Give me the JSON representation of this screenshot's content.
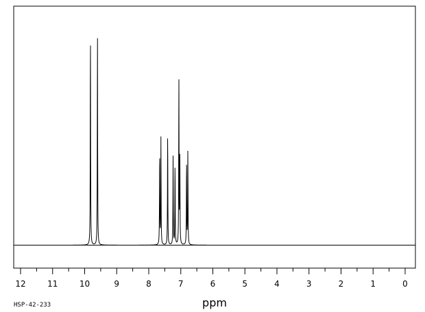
{
  "chart_data": {
    "type": "line",
    "title": "",
    "xlabel": "ppm",
    "ylabel": "",
    "xlim": [
      12.2,
      -0.3
    ],
    "x_reversed": true,
    "y_baseline": 0,
    "y_max": 1.0,
    "x_ticks": [
      12,
      11,
      10,
      9,
      8,
      7,
      6,
      5,
      4,
      3,
      2,
      1,
      0
    ],
    "x_tick_labels": [
      "12",
      "11",
      "10",
      "9",
      "8",
      "7",
      "6",
      "5",
      "4",
      "3",
      "2",
      "1",
      "0"
    ],
    "grid": false,
    "legend": "none",
    "peaks": [
      {
        "ppm": 9.82,
        "height": 1.0
      },
      {
        "ppm": 9.6,
        "height": 0.98
      },
      {
        "ppm": 7.66,
        "height": 0.44
      },
      {
        "ppm": 7.62,
        "height": 0.49
      },
      {
        "ppm": 7.41,
        "height": 0.53
      },
      {
        "ppm": 7.24,
        "height": 0.41
      },
      {
        "ppm": 7.18,
        "height": 0.38
      },
      {
        "ppm": 7.06,
        "height": 0.77
      },
      {
        "ppm": 7.03,
        "height": 0.43
      },
      {
        "ppm": 6.82,
        "height": 0.39
      },
      {
        "ppm": 6.78,
        "height": 0.43
      }
    ]
  },
  "code_label": "HSP-42-233"
}
